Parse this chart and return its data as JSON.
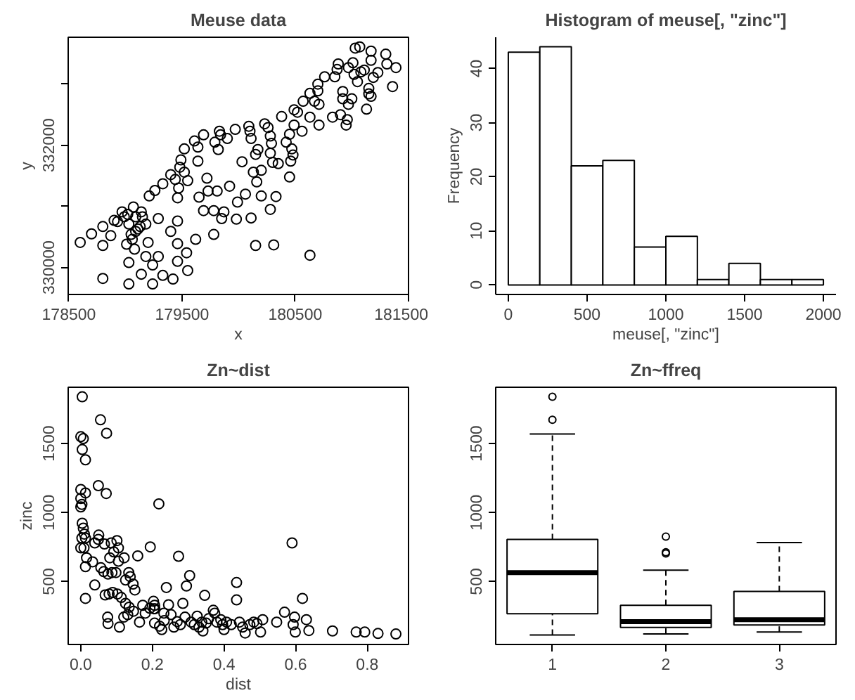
{
  "chart_data": [
    {
      "type": "scatter",
      "title": "Meuse data",
      "xlabel": "x",
      "ylabel": "y",
      "color": "#000000",
      "marker": "circle",
      "grid": false,
      "x": [
        178600,
        178700,
        178800,
        178800,
        178800,
        178870,
        178900,
        178930,
        178970,
        178990,
        179020,
        179030,
        179050,
        179070,
        179090,
        179060,
        179080,
        179010,
        179030,
        179030,
        179090,
        179110,
        179130,
        179140,
        179150,
        179180,
        179140,
        179200,
        179180,
        179240,
        179290,
        179240,
        179210,
        179260,
        179290,
        179330,
        179330,
        179400,
        179400,
        179440,
        179420,
        179460,
        179460,
        179460,
        179460,
        179470,
        179480,
        179490,
        179520,
        179520,
        179540,
        179550,
        179550,
        179610,
        179620,
        179640,
        179640,
        179650,
        179690,
        179690,
        179720,
        179730,
        179780,
        179780,
        179810,
        179830,
        179790,
        179820,
        179840,
        179850,
        179870,
        179900,
        179920,
        179970,
        179980,
        179990,
        180030,
        180060,
        180090,
        180100,
        180110,
        180110,
        180150,
        180150,
        180160,
        180170,
        180130,
        180200,
        180200,
        180230,
        180260,
        180280,
        180290,
        180280,
        180280,
        180300,
        180310,
        180330,
        180350,
        180380,
        180420,
        180450,
        180450,
        180460,
        180470,
        180480,
        180490,
        180490,
        180520,
        180560,
        180570,
        180630,
        180630,
        180630,
        180670,
        180700,
        180710,
        180700,
        180710,
        180760,
        180830,
        180850,
        180870,
        180880,
        180920,
        180900,
        180920,
        180950,
        180960,
        180970,
        181000,
        180970,
        181010,
        181030,
        181020,
        181050,
        181070,
        181080,
        181110,
        181130,
        181150,
        181150,
        181170,
        181170,
        181170,
        181190,
        181230,
        181300,
        181310,
        181360,
        181390
      ],
      "values": [
        330410,
        330550,
        329820,
        330670,
        330360,
        330520,
        330770,
        330750,
        330910,
        330830,
        330870,
        330710,
        330540,
        330990,
        330830,
        330460,
        330300,
        330380,
        329730,
        330080,
        330590,
        330630,
        330670,
        330910,
        330830,
        330710,
        329890,
        330410,
        330180,
        330040,
        330180,
        329730,
        331170,
        331260,
        330800,
        331370,
        329870,
        330590,
        331520,
        331440,
        329810,
        330100,
        330390,
        330760,
        331140,
        331300,
        331640,
        331760,
        331940,
        331560,
        330240,
        329950,
        331420,
        332070,
        330460,
        331970,
        331740,
        331150,
        332170,
        330930,
        331460,
        331250,
        330930,
        330540,
        331250,
        332230,
        332050,
        331930,
        332170,
        330800,
        330910,
        332110,
        331330,
        332260,
        330790,
        331070,
        331730,
        331200,
        332310,
        332230,
        332110,
        330810,
        330360,
        331850,
        331400,
        331930,
        331560,
        331170,
        331590,
        332350,
        332290,
        331870,
        332030,
        332150,
        330950,
        331720,
        330370,
        331160,
        331700,
        332470,
        332050,
        331480,
        332180,
        331740,
        331940,
        331840,
        332330,
        332580,
        332540,
        332230,
        332720,
        330200,
        332460,
        332850,
        332720,
        333000,
        332330,
        332890,
        332670,
        333120,
        332460,
        333120,
        333240,
        333330,
        332880,
        332500,
        332760,
        332330,
        332420,
        332670,
        332760,
        333270,
        333350,
        333590,
        333160,
        333040,
        333610,
        333200,
        333230,
        332590,
        332840,
        332930,
        333540,
        332800,
        333390,
        333110,
        333190,
        333490,
        333330,
        332960,
        333270
      ],
      "xlim": [
        178494,
        181501
      ],
      "ylim": [
        329558,
        333767
      ],
      "xticks": [
        178500,
        179500,
        180500,
        181500
      ],
      "yticks": [
        330000,
        {
          "value": 331000,
          "label": null
        },
        332000,
        {
          "value": 333000,
          "label": null
        }
      ]
    },
    {
      "type": "histogram",
      "title": "Histogram of meuse[, \"zinc\"]",
      "xlabel": "meuse[, \"zinc\"]",
      "ylabel": "Frequency",
      "color": "#ffffff",
      "grid": false,
      "bins": [
        0,
        200,
        400,
        600,
        800,
        1000,
        1200,
        1400,
        1600,
        1800,
        2000
      ],
      "values": [
        43,
        44,
        22,
        23,
        7,
        9,
        1,
        4,
        1,
        1
      ],
      "xlim": [
        -80,
        2080
      ],
      "ylim": [
        -1.76,
        45.76
      ],
      "xticks": [
        0,
        500,
        1000,
        1500,
        2000
      ],
      "yticks": [
        0,
        10,
        20,
        30,
        40
      ]
    },
    {
      "type": "scatter",
      "title": "Zn~dist",
      "xlabel": "dist",
      "ylabel": "zinc",
      "color": "#000000",
      "marker": "circle",
      "grid": false,
      "x": [
        0.004,
        0.055,
        0.072,
        0.0,
        0.007,
        0.004,
        0.013,
        0.049,
        0.071,
        0.0,
        0.013,
        0.0,
        0.003,
        0.0,
        0.218,
        0.004,
        0.007,
        0.003,
        0.013,
        0.0,
        0.009,
        0.01,
        0.05,
        0.049,
        0.066,
        0.085,
        0.101,
        0.105,
        0.092,
        0.081,
        0.016,
        0.013,
        0.033,
        0.039,
        0.056,
        0.064,
        0.076,
        0.087,
        0.098,
        0.105,
        0.121,
        0.134,
        0.138,
        0.146,
        0.151,
        0.125,
        0.159,
        0.194,
        0.206,
        0.207,
        0.206,
        0.039,
        0.013,
        0.068,
        0.079,
        0.089,
        0.102,
        0.113,
        0.125,
        0.135,
        0.147,
        0.164,
        0.18,
        0.193,
        0.075,
        0.076,
        0.108,
        0.12,
        0.131,
        0.173,
        0.203,
        0.204,
        0.22,
        0.226,
        0.232,
        0.239,
        0.233,
        0.245,
        0.252,
        0.26,
        0.269,
        0.273,
        0.278,
        0.285,
        0.291,
        0.295,
        0.304,
        0.308,
        0.317,
        0.325,
        0.33,
        0.338,
        0.341,
        0.346,
        0.35,
        0.357,
        0.37,
        0.374,
        0.38,
        0.391,
        0.396,
        0.4,
        0.407,
        0.42,
        0.435,
        0.435,
        0.443,
        0.452,
        0.459,
        0.472,
        0.483,
        0.492,
        0.502,
        0.508,
        0.547,
        0.569,
        0.59,
        0.593,
        0.597,
        0.599,
        0.619,
        0.63,
        0.637,
        0.703,
        0.769,
        0.793,
        0.83,
        0.88
      ],
      "values": [
        1839,
        1672,
        1575,
        1550,
        1536,
        1457,
        1382,
        1195,
        1138,
        1167,
        1142,
        1102,
        1059,
        1041,
        1063,
        923,
        887,
        815,
        815,
        744,
        744,
        844,
        837,
        805,
        772,
        780,
        797,
        744,
        715,
        672,
        672,
        608,
        643,
        780,
        600,
        572,
        554,
        565,
        565,
        647,
        672,
        565,
        536,
        482,
        439,
        511,
        686,
        751,
        328,
        303,
        199,
        475,
        378,
        403,
        410,
        421,
        410,
        385,
        342,
        314,
        285,
        206,
        271,
        306,
        242,
        195,
        170,
        242,
        260,
        328,
        357,
        303,
        177,
        152,
        271,
        457,
        217,
        332,
        260,
        170,
        210,
        683,
        188,
        342,
        242,
        468,
        543,
        206,
        188,
        249,
        170,
        206,
        142,
        400,
        199,
        231,
        292,
        271,
        206,
        224,
        188,
        152,
        206,
        188,
        493,
        367,
        206,
        170,
        127,
        188,
        206,
        195,
        134,
        224,
        206,
        278,
        780,
        188,
        242,
        134,
        378,
        224,
        145,
        142,
        134,
        134,
        124,
        120
      ],
      "xlim": [
        -0.0352,
        0.9152
      ],
      "ylim": [
        44,
        1908
      ],
      "xticks": [
        {
          "value": 0,
          "label": "0.0"
        },
        0.2,
        0.4,
        0.6,
        0.8
      ],
      "yticks": [
        500,
        1000,
        1500
      ]
    },
    {
      "type": "box",
      "title": "Zn~ffreq",
      "color": "#ffffff",
      "grid": false,
      "categories": [
        "1",
        "2",
        "3"
      ],
      "boxes": [
        {
          "low": 113,
          "q1": 267,
          "median": 565,
          "q3": 805,
          "high": 1569,
          "outliers": [
            1672,
            1839
          ]
        },
        {
          "low": 120,
          "q1": 167,
          "median": 210,
          "q3": 328,
          "high": 582,
          "outliers": [
            703,
            712,
            826
          ]
        },
        {
          "low": 135,
          "q1": 185,
          "median": 224,
          "q3": 428,
          "high": 783
        }
      ],
      "ylim": [
        44,
        1908
      ],
      "yticks": [
        500,
        1000,
        1500
      ]
    }
  ]
}
